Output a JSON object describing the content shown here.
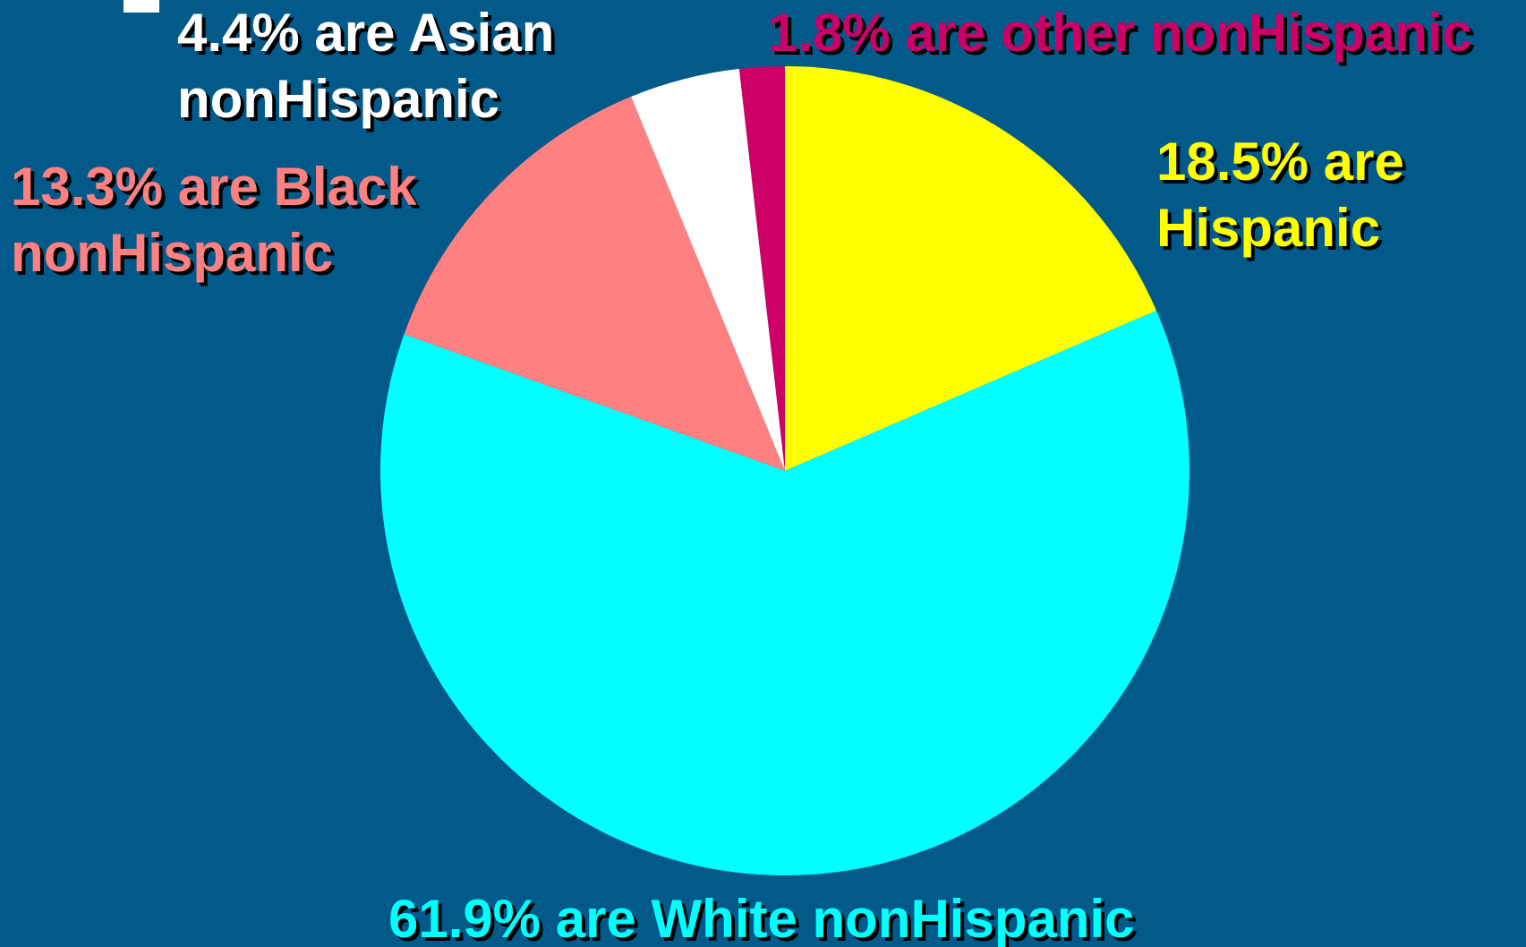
{
  "colors": {
    "background": "#015a8a",
    "hispanic": "#ffff00",
    "white": "#00ffff",
    "black": "#ff8080",
    "asian": "#ffffff",
    "other": "#cc0066"
  },
  "chart_data": {
    "type": "pie",
    "title": "",
    "slices": [
      {
        "name": "Hispanic",
        "value": 18.5,
        "label": "18.5% are\nHispanic",
        "color": "#ffff00"
      },
      {
        "name": "White nonHispanic",
        "value": 61.9,
        "label": "61.9% are White nonHispanic",
        "color": "#00ffff"
      },
      {
        "name": "Black nonHispanic",
        "value": 13.3,
        "label": "13.3% are Black\nnonHispanic",
        "color": "#ff8080"
      },
      {
        "name": "Asian nonHispanic",
        "value": 4.4,
        "label": "4.4% are Asian\nnonHispanic",
        "color": "#ffffff"
      },
      {
        "name": "other nonHispanic",
        "value": 1.8,
        "label": "1.8% are other nonHispanic",
        "color": "#cc0066"
      }
    ],
    "start": "12 o'clock",
    "direction": "clockwise"
  }
}
